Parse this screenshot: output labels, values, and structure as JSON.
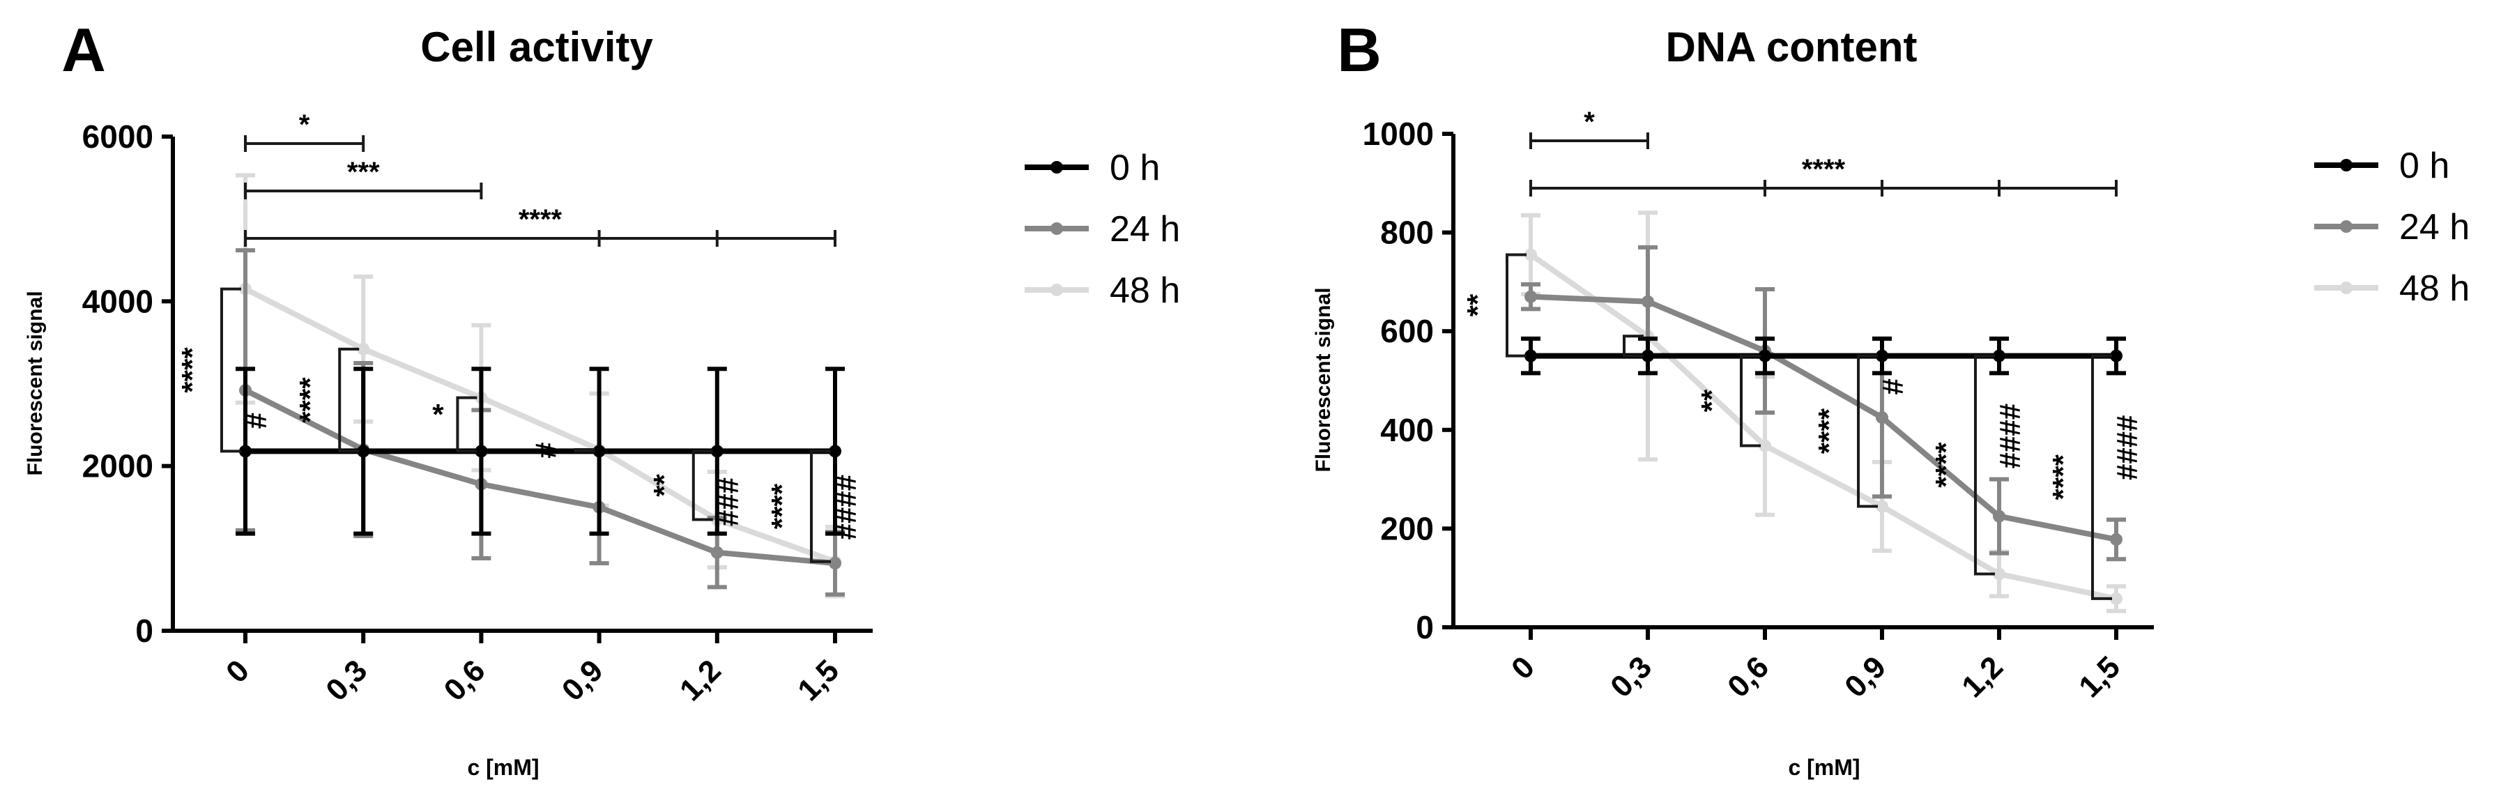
{
  "colors": {
    "h0": "#000000",
    "h24": "#858585",
    "h48": "#dadada",
    "axis": "#000000",
    "bracket": "#1a1a1a"
  },
  "chart_data": [
    {
      "type": "line",
      "panel_letter": "A",
      "title": "Cell activity",
      "xlabel": "c [mM]",
      "ylabel": "Fluorescent signal",
      "categories": [
        "0",
        "0,3",
        "0,6",
        "0,9",
        "1,2",
        "1,5"
      ],
      "ylim": [
        0,
        6000
      ],
      "yticks": [
        "0",
        "2000",
        "4000",
        "6000"
      ],
      "grid": false,
      "legend_position": "right",
      "series": [
        {
          "name": "0 h",
          "key": "h0",
          "values": [
            2180,
            2180,
            2180,
            2180,
            2180,
            2180
          ],
          "err": [
            1000,
            1000,
            1000,
            1000,
            1000,
            1000
          ]
        },
        {
          "name": "24 h",
          "key": "h24",
          "values": [
            2920,
            2200,
            1780,
            1500,
            950,
            820
          ],
          "err": [
            1700,
            1050,
            900,
            680,
            420,
            380
          ]
        },
        {
          "name": "48 h",
          "key": "h48",
          "values": [
            4150,
            3420,
            2830,
            2200,
            1350,
            840
          ],
          "err": [
            1380,
            880,
            880,
            680,
            580,
            420
          ]
        }
      ],
      "top_brackets": [
        {
          "label": "*",
          "ticks": [
            0,
            1
          ]
        },
        {
          "label": "***",
          "ticks": [
            0,
            2
          ]
        },
        {
          "label": "****",
          "ticks": [
            0,
            3,
            4,
            5
          ],
          "label_between": [
            2,
            3
          ]
        }
      ],
      "side_annotations": [
        {
          "label": "****",
          "at": 0,
          "vertical": true
        },
        {
          "label": "#",
          "at": 0,
          "vertical": true
        },
        {
          "label": "****",
          "at": 1,
          "vertical": true
        },
        {
          "label": "*",
          "at": 2,
          "vertical": false
        },
        {
          "label": "#",
          "at": 3,
          "vertical": true
        },
        {
          "label": "**",
          "at": 4,
          "vertical": true
        },
        {
          "label": "###",
          "at": 4,
          "vertical": true
        },
        {
          "label": "****",
          "at": 5,
          "vertical": true
        },
        {
          "label": "####",
          "at": 5,
          "vertical": true
        }
      ]
    },
    {
      "type": "line",
      "panel_letter": "B",
      "title": "DNA content",
      "xlabel": "c [mM]",
      "ylabel": "Fluorescent signal",
      "categories": [
        "0",
        "0,3",
        "0,6",
        "0,9",
        "1,2",
        "1,5"
      ],
      "ylim": [
        0,
        1000
      ],
      "yticks": [
        "0",
        "200",
        "400",
        "600",
        "800",
        "1000"
      ],
      "grid": false,
      "legend_position": "right",
      "series": [
        {
          "name": "0 h",
          "key": "h0",
          "values": [
            550,
            550,
            550,
            550,
            550,
            550
          ],
          "err": [
            35,
            35,
            35,
            35,
            35,
            35
          ]
        },
        {
          "name": "24 h",
          "key": "h24",
          "values": [
            670,
            660,
            560,
            425,
            225,
            178
          ],
          "err": [
            25,
            110,
            125,
            160,
            75,
            40
          ]
        },
        {
          "name": "48 h",
          "key": "h48",
          "values": [
            755,
            590,
            368,
            245,
            108,
            58
          ],
          "err": [
            80,
            250,
            140,
            90,
            45,
            25
          ]
        }
      ],
      "top_brackets": [
        {
          "label": "*",
          "ticks": [
            0,
            1
          ]
        },
        {
          "label": "****",
          "ticks": [
            0,
            2,
            3,
            4,
            5
          ],
          "label_between": [
            2,
            3
          ]
        }
      ],
      "side_annotations": [
        {
          "label": "**",
          "at": 0,
          "vertical": true
        },
        {
          "label": "**",
          "at": 2,
          "vertical": true
        },
        {
          "label": "****",
          "at": 3,
          "vertical": true
        },
        {
          "label": "#",
          "at": 3,
          "vertical": true
        },
        {
          "label": "****",
          "at": 4,
          "vertical": true
        },
        {
          "label": "####",
          "at": 4,
          "vertical": true
        },
        {
          "label": "****",
          "at": 5,
          "vertical": true
        },
        {
          "label": "####",
          "at": 5,
          "vertical": true
        }
      ]
    }
  ]
}
